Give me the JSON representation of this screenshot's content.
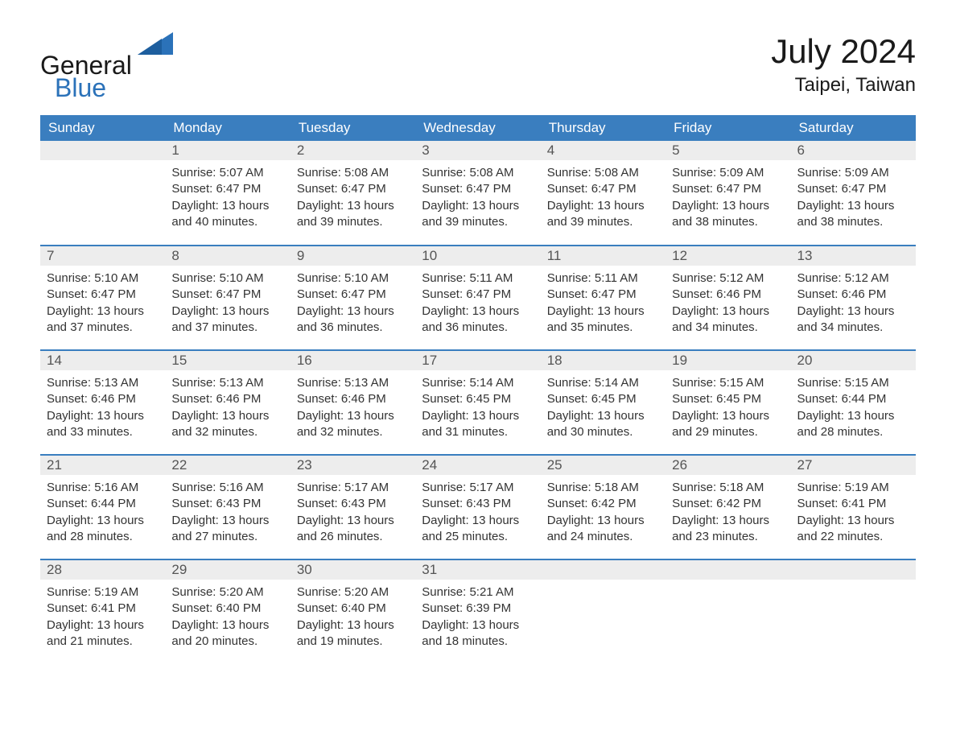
{
  "logo": {
    "word1": "General",
    "word2": "Blue"
  },
  "title": {
    "month": "July 2024",
    "location": "Taipei, Taiwan"
  },
  "colors": {
    "header_bg": "#3a7ebf",
    "header_fg": "#ffffff",
    "daynum_bg": "#ededed",
    "row_divider": "#3a7ebf",
    "logo_blue": "#2b72b9"
  },
  "weekdays": [
    "Sunday",
    "Monday",
    "Tuesday",
    "Wednesday",
    "Thursday",
    "Friday",
    "Saturday"
  ],
  "weeks": [
    [
      null,
      {
        "n": "1",
        "sunrise": "Sunrise: 5:07 AM",
        "sunset": "Sunset: 6:47 PM",
        "d1": "Daylight: 13 hours",
        "d2": "and 40 minutes."
      },
      {
        "n": "2",
        "sunrise": "Sunrise: 5:08 AM",
        "sunset": "Sunset: 6:47 PM",
        "d1": "Daylight: 13 hours",
        "d2": "and 39 minutes."
      },
      {
        "n": "3",
        "sunrise": "Sunrise: 5:08 AM",
        "sunset": "Sunset: 6:47 PM",
        "d1": "Daylight: 13 hours",
        "d2": "and 39 minutes."
      },
      {
        "n": "4",
        "sunrise": "Sunrise: 5:08 AM",
        "sunset": "Sunset: 6:47 PM",
        "d1": "Daylight: 13 hours",
        "d2": "and 39 minutes."
      },
      {
        "n": "5",
        "sunrise": "Sunrise: 5:09 AM",
        "sunset": "Sunset: 6:47 PM",
        "d1": "Daylight: 13 hours",
        "d2": "and 38 minutes."
      },
      {
        "n": "6",
        "sunrise": "Sunrise: 5:09 AM",
        "sunset": "Sunset: 6:47 PM",
        "d1": "Daylight: 13 hours",
        "d2": "and 38 minutes."
      }
    ],
    [
      {
        "n": "7",
        "sunrise": "Sunrise: 5:10 AM",
        "sunset": "Sunset: 6:47 PM",
        "d1": "Daylight: 13 hours",
        "d2": "and 37 minutes."
      },
      {
        "n": "8",
        "sunrise": "Sunrise: 5:10 AM",
        "sunset": "Sunset: 6:47 PM",
        "d1": "Daylight: 13 hours",
        "d2": "and 37 minutes."
      },
      {
        "n": "9",
        "sunrise": "Sunrise: 5:10 AM",
        "sunset": "Sunset: 6:47 PM",
        "d1": "Daylight: 13 hours",
        "d2": "and 36 minutes."
      },
      {
        "n": "10",
        "sunrise": "Sunrise: 5:11 AM",
        "sunset": "Sunset: 6:47 PM",
        "d1": "Daylight: 13 hours",
        "d2": "and 36 minutes."
      },
      {
        "n": "11",
        "sunrise": "Sunrise: 5:11 AM",
        "sunset": "Sunset: 6:47 PM",
        "d1": "Daylight: 13 hours",
        "d2": "and 35 minutes."
      },
      {
        "n": "12",
        "sunrise": "Sunrise: 5:12 AM",
        "sunset": "Sunset: 6:46 PM",
        "d1": "Daylight: 13 hours",
        "d2": "and 34 minutes."
      },
      {
        "n": "13",
        "sunrise": "Sunrise: 5:12 AM",
        "sunset": "Sunset: 6:46 PM",
        "d1": "Daylight: 13 hours",
        "d2": "and 34 minutes."
      }
    ],
    [
      {
        "n": "14",
        "sunrise": "Sunrise: 5:13 AM",
        "sunset": "Sunset: 6:46 PM",
        "d1": "Daylight: 13 hours",
        "d2": "and 33 minutes."
      },
      {
        "n": "15",
        "sunrise": "Sunrise: 5:13 AM",
        "sunset": "Sunset: 6:46 PM",
        "d1": "Daylight: 13 hours",
        "d2": "and 32 minutes."
      },
      {
        "n": "16",
        "sunrise": "Sunrise: 5:13 AM",
        "sunset": "Sunset: 6:46 PM",
        "d1": "Daylight: 13 hours",
        "d2": "and 32 minutes."
      },
      {
        "n": "17",
        "sunrise": "Sunrise: 5:14 AM",
        "sunset": "Sunset: 6:45 PM",
        "d1": "Daylight: 13 hours",
        "d2": "and 31 minutes."
      },
      {
        "n": "18",
        "sunrise": "Sunrise: 5:14 AM",
        "sunset": "Sunset: 6:45 PM",
        "d1": "Daylight: 13 hours",
        "d2": "and 30 minutes."
      },
      {
        "n": "19",
        "sunrise": "Sunrise: 5:15 AM",
        "sunset": "Sunset: 6:45 PM",
        "d1": "Daylight: 13 hours",
        "d2": "and 29 minutes."
      },
      {
        "n": "20",
        "sunrise": "Sunrise: 5:15 AM",
        "sunset": "Sunset: 6:44 PM",
        "d1": "Daylight: 13 hours",
        "d2": "and 28 minutes."
      }
    ],
    [
      {
        "n": "21",
        "sunrise": "Sunrise: 5:16 AM",
        "sunset": "Sunset: 6:44 PM",
        "d1": "Daylight: 13 hours",
        "d2": "and 28 minutes."
      },
      {
        "n": "22",
        "sunrise": "Sunrise: 5:16 AM",
        "sunset": "Sunset: 6:43 PM",
        "d1": "Daylight: 13 hours",
        "d2": "and 27 minutes."
      },
      {
        "n": "23",
        "sunrise": "Sunrise: 5:17 AM",
        "sunset": "Sunset: 6:43 PM",
        "d1": "Daylight: 13 hours",
        "d2": "and 26 minutes."
      },
      {
        "n": "24",
        "sunrise": "Sunrise: 5:17 AM",
        "sunset": "Sunset: 6:43 PM",
        "d1": "Daylight: 13 hours",
        "d2": "and 25 minutes."
      },
      {
        "n": "25",
        "sunrise": "Sunrise: 5:18 AM",
        "sunset": "Sunset: 6:42 PM",
        "d1": "Daylight: 13 hours",
        "d2": "and 24 minutes."
      },
      {
        "n": "26",
        "sunrise": "Sunrise: 5:18 AM",
        "sunset": "Sunset: 6:42 PM",
        "d1": "Daylight: 13 hours",
        "d2": "and 23 minutes."
      },
      {
        "n": "27",
        "sunrise": "Sunrise: 5:19 AM",
        "sunset": "Sunset: 6:41 PM",
        "d1": "Daylight: 13 hours",
        "d2": "and 22 minutes."
      }
    ],
    [
      {
        "n": "28",
        "sunrise": "Sunrise: 5:19 AM",
        "sunset": "Sunset: 6:41 PM",
        "d1": "Daylight: 13 hours",
        "d2": "and 21 minutes."
      },
      {
        "n": "29",
        "sunrise": "Sunrise: 5:20 AM",
        "sunset": "Sunset: 6:40 PM",
        "d1": "Daylight: 13 hours",
        "d2": "and 20 minutes."
      },
      {
        "n": "30",
        "sunrise": "Sunrise: 5:20 AM",
        "sunset": "Sunset: 6:40 PM",
        "d1": "Daylight: 13 hours",
        "d2": "and 19 minutes."
      },
      {
        "n": "31",
        "sunrise": "Sunrise: 5:21 AM",
        "sunset": "Sunset: 6:39 PM",
        "d1": "Daylight: 13 hours",
        "d2": "and 18 minutes."
      },
      null,
      null,
      null
    ]
  ]
}
